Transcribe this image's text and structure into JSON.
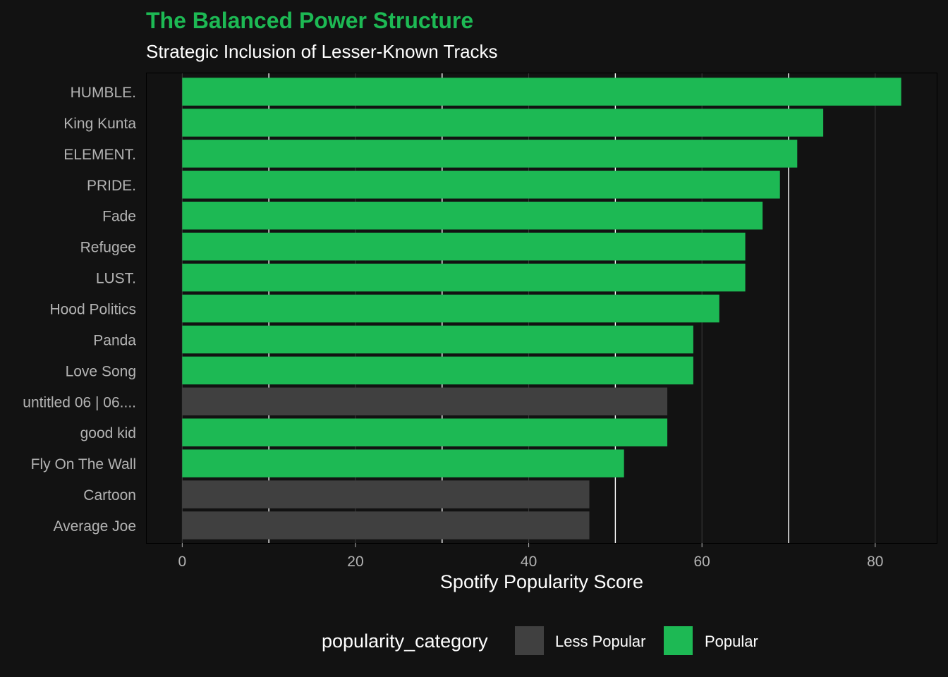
{
  "chart_data": {
    "type": "bar",
    "orientation": "horizontal",
    "title": "The Balanced Power Structure",
    "subtitle": "Strategic Inclusion of Lesser-Known Tracks",
    "xlabel": "Spotify Popularity Score",
    "ylabel": "",
    "xlim": [
      -4.1,
      87.1
    ],
    "xticks": [
      0,
      20,
      40,
      60,
      80
    ],
    "grid": true,
    "categories": [
      "HUMBLE.",
      "King Kunta",
      "ELEMENT.",
      "PRIDE.",
      "Fade",
      "Refugee",
      "LUST.",
      "Hood Politics",
      "Panda",
      "Love Song",
      "untitled 06 | 06....",
      "good kid",
      "Fly On The Wall",
      "Cartoon",
      "Average Joe"
    ],
    "values": [
      83,
      74,
      71,
      69,
      67,
      65,
      65,
      62,
      59,
      59,
      56,
      56,
      51,
      47,
      47
    ],
    "groups": [
      "Popular",
      "Popular",
      "Popular",
      "Popular",
      "Popular",
      "Popular",
      "Popular",
      "Popular",
      "Popular",
      "Popular",
      "Less Popular",
      "Popular",
      "Popular",
      "Less Popular",
      "Less Popular"
    ],
    "legend": {
      "title": "popularity_category",
      "position": "bottom",
      "entries": [
        {
          "label": "Less Popular",
          "color": "#404040"
        },
        {
          "label": "Popular",
          "color": "#1DB954"
        }
      ]
    },
    "colors": {
      "popular": "#1DB954",
      "less_popular": "#404040",
      "background": "#121212",
      "title": "#1DB954"
    }
  }
}
